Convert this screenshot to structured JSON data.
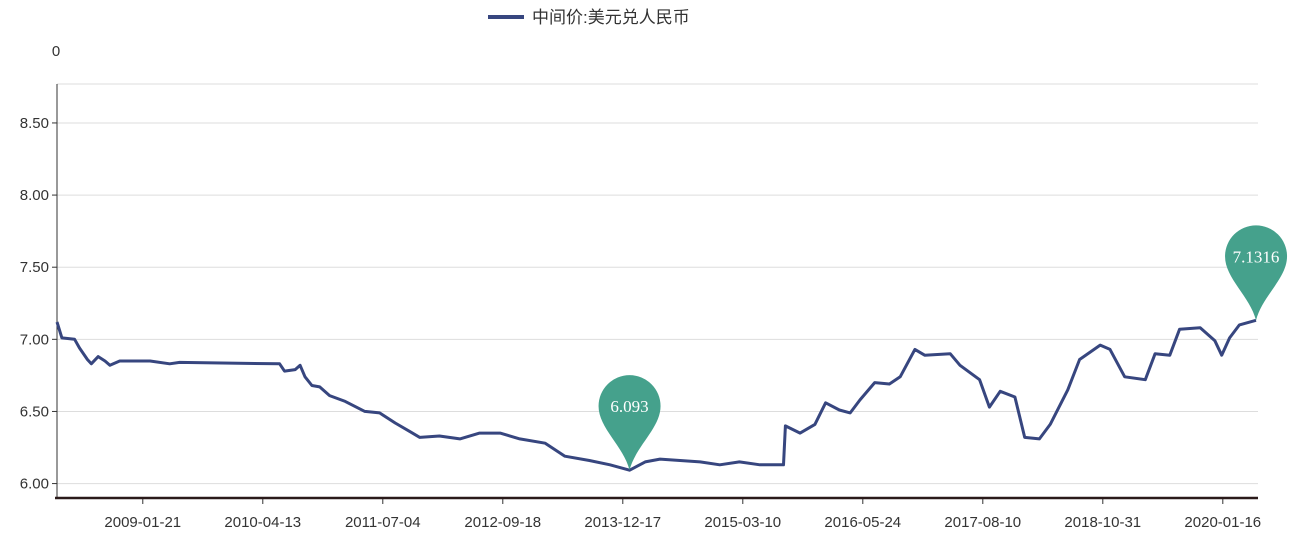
{
  "chart_data": {
    "type": "line",
    "title": "",
    "legend": {
      "label": "中间价:美元兑人民币",
      "placement": "top-center"
    },
    "y_axis_name": "0",
    "xlabel": "",
    "ylabel": "",
    "x_unit": "decimal year",
    "xlim": [
      2008.18,
      2020.43
    ],
    "ylim": [
      5.9,
      8.77
    ],
    "grid": true,
    "y_ticks": [
      6.0,
      6.5,
      7.0,
      7.5,
      8.0,
      8.5
    ],
    "y_tick_labels": [
      "6.00",
      "6.50",
      "7.00",
      "7.50",
      "8.00",
      "8.50"
    ],
    "x_ticks": [
      2009.055,
      2010.279,
      2011.503,
      2012.727,
      2013.951,
      2015.175,
      2016.399,
      2017.623,
      2018.847,
      2020.071
    ],
    "x_tick_labels": [
      "2009-01-21",
      "2010-04-13",
      "2011-07-04",
      "2012-09-18",
      "2013-12-17",
      "2015-03-10",
      "2016-05-24",
      "2017-08-10",
      "2018-10-31",
      "2020-01-16"
    ],
    "series": [
      {
        "name": "中间价:美元兑人民币",
        "color": "#37467f",
        "points": [
          [
            2008.18,
            7.12
          ],
          [
            2008.23,
            7.01
          ],
          [
            2008.36,
            7.0
          ],
          [
            2008.41,
            6.94
          ],
          [
            2008.49,
            6.86
          ],
          [
            2008.53,
            6.83
          ],
          [
            2008.6,
            6.88
          ],
          [
            2008.67,
            6.85
          ],
          [
            2008.72,
            6.82
          ],
          [
            2008.82,
            6.85
          ],
          [
            2008.92,
            6.85
          ],
          [
            2009.13,
            6.85
          ],
          [
            2009.33,
            6.83
          ],
          [
            2009.43,
            6.84
          ],
          [
            2010.45,
            6.83
          ],
          [
            2010.5,
            6.78
          ],
          [
            2010.61,
            6.79
          ],
          [
            2010.66,
            6.82
          ],
          [
            2010.71,
            6.74
          ],
          [
            2010.78,
            6.68
          ],
          [
            2010.86,
            6.67
          ],
          [
            2010.96,
            6.61
          ],
          [
            2011.12,
            6.57
          ],
          [
            2011.32,
            6.5
          ],
          [
            2011.47,
            6.49
          ],
          [
            2011.63,
            6.42
          ],
          [
            2011.78,
            6.36
          ],
          [
            2011.88,
            6.32
          ],
          [
            2012.08,
            6.33
          ],
          [
            2012.29,
            6.31
          ],
          [
            2012.49,
            6.35
          ],
          [
            2012.7,
            6.35
          ],
          [
            2012.9,
            6.31
          ],
          [
            2013.16,
            6.28
          ],
          [
            2013.36,
            6.19
          ],
          [
            2013.61,
            6.16
          ],
          [
            2013.82,
            6.13
          ],
          [
            2014.02,
            6.093
          ],
          [
            2014.18,
            6.15
          ],
          [
            2014.33,
            6.17
          ],
          [
            2014.74,
            6.15
          ],
          [
            2014.94,
            6.13
          ],
          [
            2015.14,
            6.15
          ],
          [
            2015.35,
            6.13
          ],
          [
            2015.59,
            6.13
          ],
          [
            2015.61,
            6.4
          ],
          [
            2015.76,
            6.35
          ],
          [
            2015.91,
            6.41
          ],
          [
            2016.02,
            6.56
          ],
          [
            2016.16,
            6.51
          ],
          [
            2016.27,
            6.49
          ],
          [
            2016.37,
            6.58
          ],
          [
            2016.52,
            6.7
          ],
          [
            2016.67,
            6.69
          ],
          [
            2016.78,
            6.74
          ],
          [
            2016.93,
            6.93
          ],
          [
            2017.03,
            6.89
          ],
          [
            2017.29,
            6.9
          ],
          [
            2017.39,
            6.82
          ],
          [
            2017.59,
            6.72
          ],
          [
            2017.69,
            6.53
          ],
          [
            2017.8,
            6.64
          ],
          [
            2017.95,
            6.6
          ],
          [
            2018.05,
            6.32
          ],
          [
            2018.2,
            6.31
          ],
          [
            2018.31,
            6.41
          ],
          [
            2018.49,
            6.65
          ],
          [
            2018.61,
            6.86
          ],
          [
            2018.82,
            6.96
          ],
          [
            2018.92,
            6.93
          ],
          [
            2019.07,
            6.74
          ],
          [
            2019.28,
            6.72
          ],
          [
            2019.38,
            6.9
          ],
          [
            2019.53,
            6.89
          ],
          [
            2019.63,
            7.07
          ],
          [
            2019.84,
            7.08
          ],
          [
            2019.99,
            6.99
          ],
          [
            2020.06,
            6.89
          ],
          [
            2020.14,
            7.01
          ],
          [
            2020.24,
            7.1
          ],
          [
            2020.41,
            7.1316
          ]
        ]
      }
    ],
    "annotations": [
      {
        "type": "min",
        "x": 2014.02,
        "value": 6.093,
        "label": "6.093",
        "color": "#45a18c"
      },
      {
        "type": "max",
        "x": 2020.41,
        "value": 7.1316,
        "label": "7.1316",
        "color": "#45a18c"
      }
    ]
  }
}
